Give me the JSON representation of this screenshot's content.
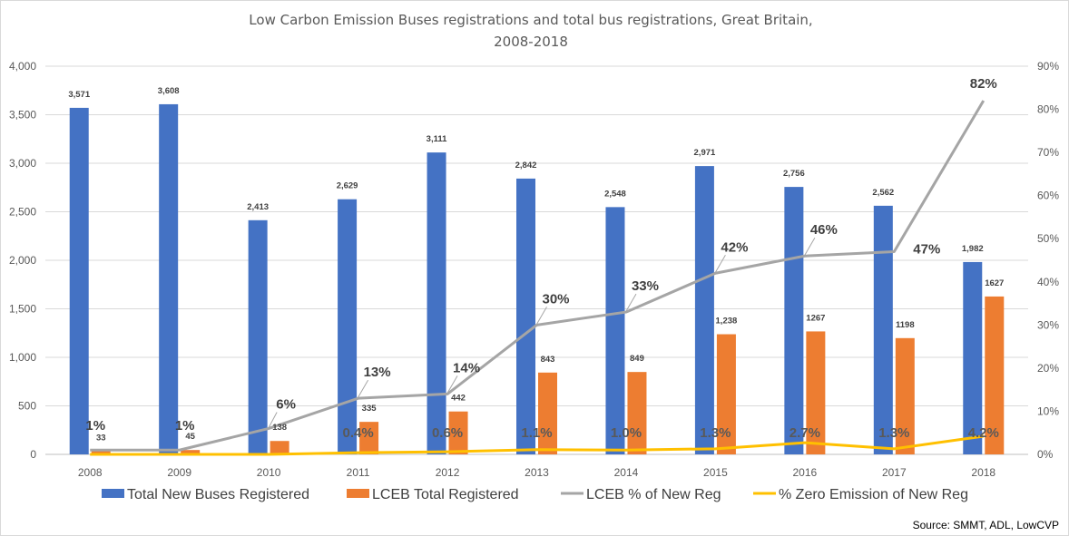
{
  "chart_data": {
    "type": "bar",
    "title_line1": "Low Carbon Emission Buses registrations and total bus registrations, Great Britain,",
    "title_line2": "2008-2018",
    "categories": [
      "2008",
      "2009",
      "2010",
      "2011",
      "2012",
      "2013",
      "2014",
      "2015",
      "2016",
      "2017",
      "2018"
    ],
    "ylim": [
      0,
      4000
    ],
    "y_ticks": [
      "0",
      "500",
      "1,000",
      "1,500",
      "2,000",
      "2,500",
      "3,000",
      "3,500",
      "4,000"
    ],
    "y2lim": [
      0,
      90
    ],
    "y2_ticks": [
      "0%",
      "10%",
      "20%",
      "30%",
      "40%",
      "50%",
      "60%",
      "70%",
      "80%",
      "90%"
    ],
    "grid": true,
    "legend_position": "bottom",
    "series": [
      {
        "name": "Total New Buses Registered",
        "kind": "bar",
        "axis": "left",
        "color": "#4472c4",
        "values": [
          3571,
          3608,
          2413,
          2629,
          3111,
          2842,
          2548,
          2971,
          2756,
          2562,
          1982
        ],
        "labels": [
          "3,571",
          "3,608",
          "2,413",
          "2,629",
          "3,111",
          "2,842",
          "2,548",
          "2,971",
          "2,756",
          "2,562",
          "1,982"
        ]
      },
      {
        "name": "LCEB Total Registered",
        "kind": "bar",
        "axis": "left",
        "color": "#ed7d31",
        "values": [
          33,
          45,
          138,
          335,
          442,
          843,
          849,
          1238,
          1267,
          1198,
          1627
        ],
        "labels": [
          "33",
          "45",
          "138",
          "335",
          "442",
          "843",
          "849",
          "1,238",
          "1267",
          "1198",
          "1627"
        ]
      },
      {
        "name": "LCEB % of New Reg",
        "kind": "line",
        "axis": "right",
        "color": "#a5a5a5",
        "values": [
          1,
          1,
          6,
          13,
          14,
          30,
          33,
          42,
          46,
          47,
          82
        ],
        "labels": [
          "1%",
          "1%",
          "6%",
          "13%",
          "14%",
          "30%",
          "33%",
          "42%",
          "46%",
          "47%",
          "82%"
        ]
      },
      {
        "name": "% Zero Emission of New Reg",
        "kind": "line",
        "axis": "right",
        "color": "#ffc000",
        "values": [
          0,
          0,
          0,
          0.4,
          0.6,
          1.1,
          1.0,
          1.3,
          2.7,
          1.3,
          4.2
        ],
        "labels": [
          "",
          "",
          "",
          "0.4%",
          "0.6%",
          "1.1%",
          "1.0%",
          "1.3%",
          "2.7%",
          "1.3%",
          "4.2%"
        ]
      }
    ],
    "source": "Source: SMMT, ADL, LowCVP"
  }
}
